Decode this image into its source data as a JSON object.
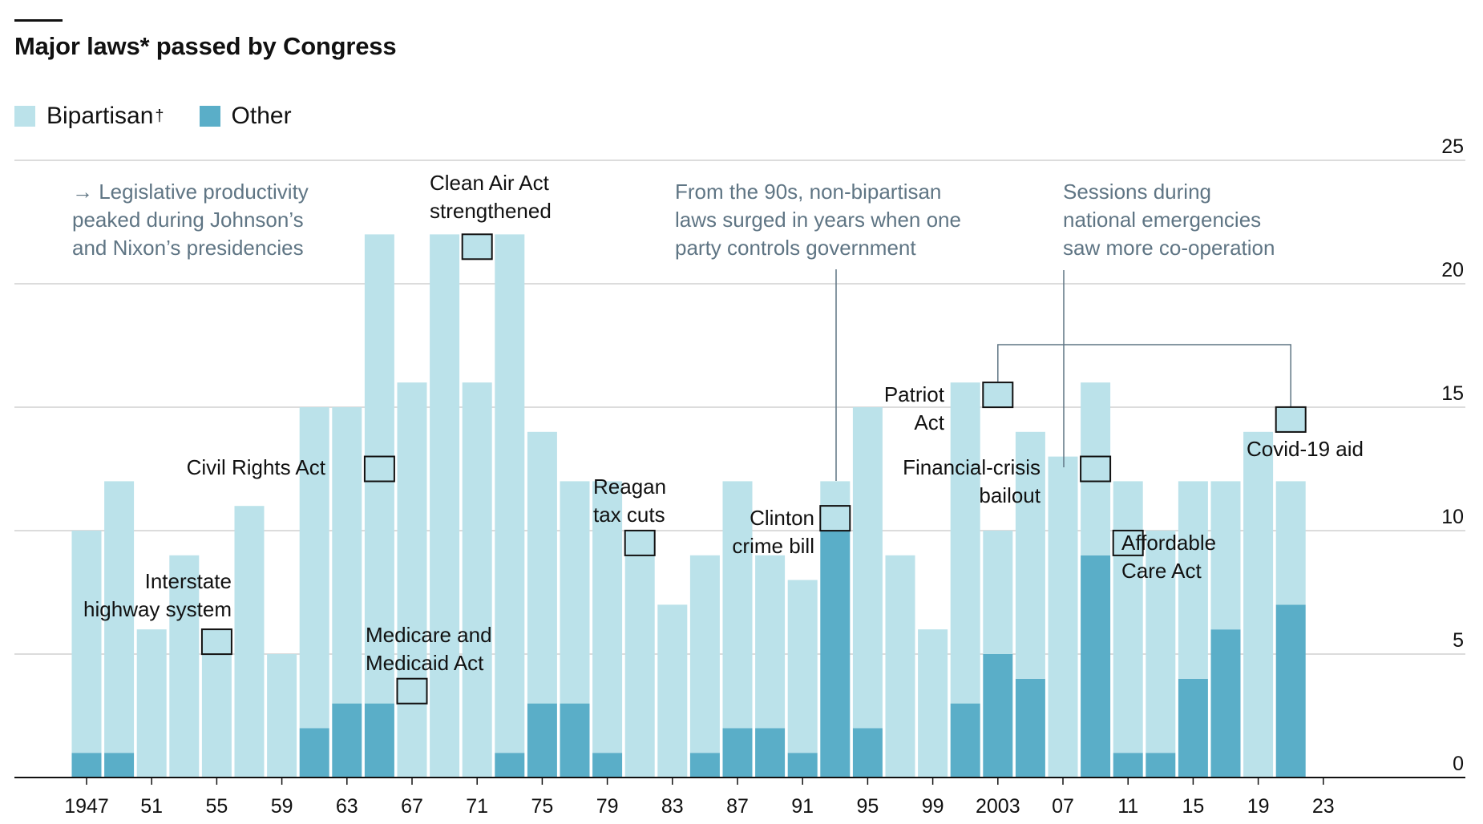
{
  "title": "Major laws* passed by Congress",
  "legend": {
    "bipartisan_label": "Bipartisan",
    "bipartisan_mark": "†",
    "other_label": "Other"
  },
  "colors": {
    "bipartisan": "#bbe2ea",
    "other": "#5aaec8",
    "grid": "#d0d0d0",
    "axis": "#111111",
    "annotation_text": "#5f7584",
    "leader": "#5f7584"
  },
  "chart_data": {
    "type": "bar",
    "stacked": true,
    "categories": [
      "1947",
      "1949",
      "1951",
      "1953",
      "1955",
      "1957",
      "1959",
      "1961",
      "1963",
      "1965",
      "1967",
      "1969",
      "1971",
      "1973",
      "1975",
      "1977",
      "1979",
      "1981",
      "1983",
      "1985",
      "1987",
      "1989",
      "1991",
      "1993",
      "1995",
      "1997",
      "1999",
      "2001",
      "2003",
      "2005",
      "2007",
      "2009",
      "2011",
      "2013",
      "2015",
      "2017",
      "2019",
      "2021"
    ],
    "series": [
      {
        "name": "Bipartisan",
        "values": [
          9,
          11,
          6,
          9,
          5,
          11,
          5,
          13,
          12,
          19,
          16,
          22,
          16,
          21,
          11,
          9,
          11,
          9,
          7,
          8,
          10,
          7,
          7,
          2,
          13,
          9,
          6,
          13,
          5,
          10,
          13,
          7,
          11,
          9,
          8,
          6,
          14,
          5
        ]
      },
      {
        "name": "Other",
        "values": [
          1,
          1,
          0,
          0,
          0,
          0,
          0,
          2,
          3,
          3,
          0,
          0,
          0,
          1,
          3,
          3,
          1,
          0,
          0,
          1,
          2,
          2,
          1,
          10,
          2,
          0,
          0,
          3,
          5,
          4,
          0,
          9,
          1,
          1,
          4,
          6,
          0,
          7
        ]
      }
    ],
    "ylim": [
      0,
      25
    ],
    "yticks": [
      "0",
      "5",
      "10",
      "15",
      "20",
      "25"
    ],
    "xtick_labels": [
      "1947",
      "51",
      "55",
      "59",
      "63",
      "67",
      "71",
      "75",
      "79",
      "83",
      "87",
      "91",
      "95",
      "99",
      "2003",
      "07",
      "11",
      "15",
      "19",
      "23"
    ],
    "grid": true,
    "y_axis_side": "right",
    "annotations": [
      {
        "lines": [
          "Interstate",
          "highway system"
        ],
        "bar_index": 4,
        "value": 5.5
      },
      {
        "lines": [
          "Civil Rights Act"
        ],
        "bar_index": 9,
        "value": 12.5
      },
      {
        "lines": [
          "Medicare and",
          "Medicaid Act"
        ],
        "bar_index": 10,
        "value": 3.5
      },
      {
        "lines": [
          "Clean Air Act",
          "strengthened"
        ],
        "bar_index": 12,
        "value": 21.5
      },
      {
        "lines": [
          "Reagan",
          "tax cuts"
        ],
        "bar_index": 17,
        "value": 9.5
      },
      {
        "lines": [
          "Clinton",
          "crime bill"
        ],
        "bar_index": 23,
        "value": 10.5
      },
      {
        "lines": [
          "Patriot",
          "Act"
        ],
        "bar_index": 28,
        "value": 15.5
      },
      {
        "lines": [
          "Financial-crisis",
          "bailout"
        ],
        "bar_index": 31,
        "value": 12.5
      },
      {
        "lines": [
          "Affordable",
          "Care Act"
        ],
        "bar_index": 32,
        "value": 9.5
      },
      {
        "lines": [
          "Covid-19 aid"
        ],
        "bar_index": 37,
        "value": 14.5
      }
    ],
    "notes": [
      {
        "lines": [
          "→ Legislative productivity",
          "peaked during Johnson’s",
          "and Nixon’s presidencies"
        ]
      },
      {
        "lines": [
          "From the 90s, non-bipartisan",
          "laws surged in years when one",
          "party controls government"
        ]
      },
      {
        "lines": [
          "Sessions during",
          "national emergencies",
          "saw more co-operation"
        ]
      }
    ]
  }
}
